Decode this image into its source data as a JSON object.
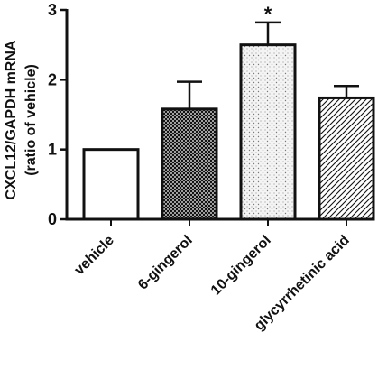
{
  "chart_data": {
    "type": "bar",
    "categories": [
      "vehicle",
      "6-gingerol",
      "10-gingerol",
      "glycyrrhetinic acid"
    ],
    "values": [
      1.0,
      1.58,
      2.5,
      1.74
    ],
    "error": [
      0,
      0.39,
      0.32,
      0.17
    ],
    "annotations": [
      "",
      "",
      "*",
      ""
    ],
    "patterns": [
      "none",
      "crosshatch",
      "dots",
      "diagonal"
    ],
    "ylabel_lines": [
      "CXCL12/GAPDH mRNA",
      "(ratio of vehicle)"
    ],
    "xlabel": "",
    "ylim": [
      0,
      3
    ],
    "yticks": [
      0,
      1,
      2,
      3
    ],
    "grid": false,
    "legend": "none"
  }
}
